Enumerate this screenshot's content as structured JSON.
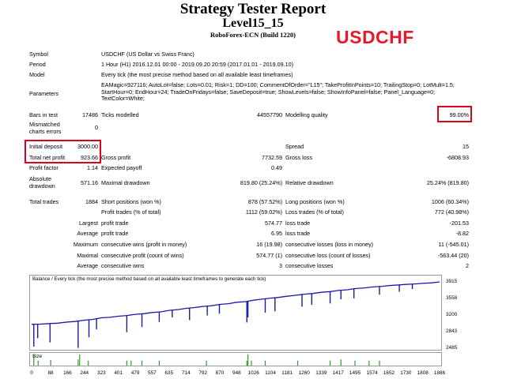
{
  "header": {
    "title": "Strategy Tester Report",
    "subtitle": "Level15_15",
    "server": "RoboForex-ECN (Build 1220)",
    "pair_overlay": "USDCHF"
  },
  "info": {
    "symbol_label": "Symbol",
    "symbol_value": "USDCHF (US Dollar vs Swiss Franc)",
    "period_label": "Period",
    "period_value": "1 Hour (H1) 2016.12.01 00:00 - 2019.09.20 20:59 (2017.01.01 - 2019.09.10)",
    "model_label": "Model",
    "model_value": "Every tick (the most precise method based on all available least timeframes)",
    "parameters_label": "Parameters",
    "parameters_value": "EAMagic=927116; AutoLot=false; Lots=0.01; Risk=1; DD=100; CommentOfOrder=\"L15\"; TakeProfitInPoints=10; TrailingStop=0; LotMult=1.5; StartHour=0; EndHour=24; TradeOnFridays=false; SaveDeposit=true; ShowLevels=false; ShowInfoPanel=false; Panel_Language=0; TextColor=White;"
  },
  "stats": {
    "bars_label": "Bars in test",
    "bars_value": "17486",
    "ticks_label": "Ticks modelled",
    "ticks_value": "44557790",
    "quality_label": "Modelling quality",
    "quality_value": "99.00%",
    "mismatch_label": "Mismatched charts errors",
    "mismatch_value": "0",
    "deposit_label": "Initial deposit",
    "deposit_value": "3000.00",
    "spread_label": "Spread",
    "spread_value": "15",
    "netprofit_label": "Total net profit",
    "netprofit_value": "923.66",
    "grossprofit_label": "Gross profit",
    "grossprofit_value": "7732.59",
    "grossloss_label": "Gross loss",
    "grossloss_value": "-6808.93",
    "pf_label": "Profit factor",
    "pf_value": "1.14",
    "payoff_label": "Expected payoff",
    "payoff_value": "0.49",
    "absdd_label": "Absolute drawdown",
    "absdd_value": "571.16",
    "maxdd_label": "Maximal drawdown",
    "maxdd_value": "819.80 (25.24%)",
    "reldd_label": "Relative drawdown",
    "reldd_value": "25.24% (819.80)",
    "trades_label": "Total trades",
    "trades_value": "1884",
    "short_label": "Short positions (won %)",
    "short_value": "878 (57.52%)",
    "long_label": "Long positions (won %)",
    "long_value": "1006 (60.34%)",
    "ptrades_label": "Profit trades (% of total)",
    "ptrades_value": "1112 (59.02%)",
    "ltrades_label": "Loss trades (% of total)",
    "ltrades_value": "772 (40.98%)",
    "largest_label": "Largest",
    "lp_label": "profit trade",
    "lp_value": "574.77",
    "ll_label": "loss trade",
    "ll_value": "-201.53",
    "average_label": "Average",
    "ap_label": "profit trade",
    "ap_value": "6.95",
    "al_label": "loss trade",
    "al_value": "-8.82",
    "maximum_label": "Maximum",
    "mcw_label": "consecutive wins (profit in money)",
    "mcw_value": "16 (19.98)",
    "mcl_label": "consecutive losses (loss in money)",
    "mcl_value": "11 (-545.01)",
    "maximal_label": "Maximal",
    "mcp_label": "consecutive profit (count of wins)",
    "mcp_value": "574.77 (1)",
    "mcloss_label": "consecutive loss (count of losses)",
    "mcloss_value": "-563.44 (20)",
    "average2_label": "Average",
    "acw_label": "consecutive wins",
    "acw_value": "3",
    "acl_label": "consecutive losses",
    "acl_value": "2"
  },
  "chart_data": {
    "type": "line",
    "title": "Balance / Every tick (the most precise method based on all available least timeframes to generate each tick)",
    "x_ticks": [
      0,
      88,
      166,
      244,
      323,
      401,
      479,
      557,
      635,
      714,
      792,
      870,
      948,
      1026,
      1104,
      1181,
      1260,
      1339,
      1417,
      1495,
      1574,
      1652,
      1730,
      1808,
      1886
    ],
    "y_ticks": [
      3915,
      3558,
      3200,
      2843,
      2485
    ],
    "ylim": [
      2485,
      3915
    ],
    "xlim": [
      0,
      1886
    ],
    "series": [
      {
        "values": [
          [
            0,
            3000
          ],
          [
            40,
            3005
          ],
          [
            88,
            3018
          ],
          [
            120,
            3025
          ],
          [
            166,
            3050
          ],
          [
            200,
            3060
          ],
          [
            244,
            3090
          ],
          [
            280,
            3105
          ],
          [
            323,
            3140
          ],
          [
            360,
            3150
          ],
          [
            401,
            3175
          ],
          [
            440,
            3190
          ],
          [
            479,
            3215
          ],
          [
            520,
            3230
          ],
          [
            557,
            3255
          ],
          [
            600,
            3270
          ],
          [
            635,
            3300
          ],
          [
            680,
            3320
          ],
          [
            714,
            3345
          ],
          [
            750,
            3360
          ],
          [
            792,
            3385
          ],
          [
            830,
            3400
          ],
          [
            870,
            3430
          ],
          [
            910,
            3445
          ],
          [
            948,
            3475
          ],
          [
            990,
            3490
          ],
          [
            1026,
            3520
          ],
          [
            1060,
            3540
          ],
          [
            1104,
            3565
          ],
          [
            1140,
            3580
          ],
          [
            1181,
            3605
          ],
          [
            1220,
            3625
          ],
          [
            1260,
            3650
          ],
          [
            1300,
            3665
          ],
          [
            1339,
            3690
          ],
          [
            1380,
            3705
          ],
          [
            1417,
            3730
          ],
          [
            1460,
            3745
          ],
          [
            1495,
            3770
          ],
          [
            1540,
            3785
          ],
          [
            1574,
            3805
          ],
          [
            1620,
            3820
          ],
          [
            1652,
            3835
          ],
          [
            1700,
            3850
          ],
          [
            1730,
            3860
          ],
          [
            1770,
            3870
          ],
          [
            1808,
            3882
          ],
          [
            1850,
            3895
          ],
          [
            1886,
            3915
          ]
        ],
        "dips": [
          [
            10,
            2520
          ],
          [
            28,
            2700
          ],
          [
            85,
            2610
          ],
          [
            215,
            2490
          ],
          [
            265,
            2720
          ],
          [
            300,
            2890
          ],
          [
            440,
            2830
          ],
          [
            510,
            2940
          ],
          [
            590,
            3050
          ],
          [
            650,
            3150
          ],
          [
            730,
            3090
          ],
          [
            812,
            3190
          ],
          [
            868,
            3230
          ],
          [
            995,
            3040
          ],
          [
            1000,
            3150
          ],
          [
            1080,
            3250
          ],
          [
            1125,
            3280
          ],
          [
            1250,
            3380
          ],
          [
            1295,
            3420
          ],
          [
            1380,
            3450
          ],
          [
            1430,
            3540
          ],
          [
            1490,
            3560
          ],
          [
            1608,
            3640
          ],
          [
            1700,
            3700
          ],
          [
            1760,
            3760
          ]
        ]
      }
    ],
    "size_chart": {
      "label": "Size",
      "bars": [
        [
          10,
          1
        ],
        [
          30,
          0.45
        ],
        [
          88,
          0.5
        ],
        [
          215,
          0.55
        ],
        [
          222,
          1
        ],
        [
          262,
          0.45
        ],
        [
          440,
          0.45
        ],
        [
          460,
          0.45
        ],
        [
          510,
          0.45
        ],
        [
          590,
          0.45
        ],
        [
          808,
          0.45
        ],
        [
          995,
          0.45
        ],
        [
          1000,
          1
        ],
        [
          1016,
          0.45
        ],
        [
          1080,
          0.45
        ],
        [
          1230,
          0.45
        ],
        [
          1380,
          0.45
        ],
        [
          1430,
          0.55
        ],
        [
          1495,
          0.45
        ],
        [
          1560,
          0.45
        ],
        [
          1608,
          0.45
        ]
      ]
    }
  }
}
